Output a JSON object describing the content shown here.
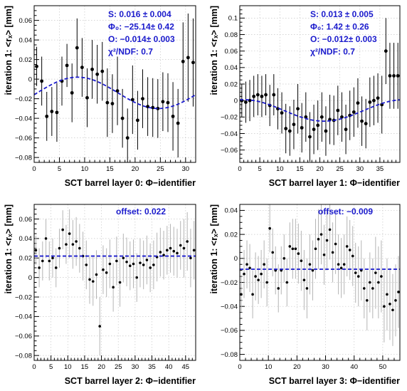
{
  "chart_data": [
    {
      "type": "scatter",
      "xlabel": "SCT barrel layer 0: Φ−identifier",
      "ylabel": "iteration 1: <rₓ> [mm]",
      "xlim": [
        0,
        32
      ],
      "ylim": [
        -0.085,
        0.075
      ],
      "xticks": [
        0,
        5,
        10,
        15,
        20,
        25,
        30
      ],
      "yticks": [
        -0.08,
        -0.06,
        -0.04,
        -0.02,
        0,
        0.02,
        0.04,
        0.06
      ],
      "ytick_labels": [
        "−0.08",
        "−0.06",
        "−0.04",
        "−0.02",
        "0",
        "0.02",
        "0.04",
        "0.06"
      ],
      "x_minor_step": 1,
      "grid": true,
      "error_color": "#000000",
      "point_radius": 2.4,
      "points": [
        {
          "x": 0,
          "y": 0.013,
          "err": 0.02
        },
        {
          "x": 1,
          "y": -0.002,
          "err": 0.025
        },
        {
          "x": 2,
          "y": -0.038,
          "err": 0.025
        },
        {
          "x": 3,
          "y": -0.033,
          "err": 0.025
        },
        {
          "x": 4,
          "y": -0.034,
          "err": 0.03
        },
        {
          "x": 5,
          "y": -0.002,
          "err": 0.025
        },
        {
          "x": 6,
          "y": 0.014,
          "err": 0.022
        },
        {
          "x": 7,
          "y": -0.014,
          "err": 0.03
        },
        {
          "x": 8,
          "y": 0.032,
          "err": 0.03
        },
        {
          "x": 9,
          "y": 0.012,
          "err": 0.03
        },
        {
          "x": 10,
          "y": -0.019,
          "err": 0.03
        },
        {
          "x": 11,
          "y": 0.01,
          "err": 0.03
        },
        {
          "x": 12,
          "y": 0.005,
          "err": 0.03
        },
        {
          "x": 13,
          "y": 0.008,
          "err": 0.03
        },
        {
          "x": 14,
          "y": -0.024,
          "err": 0.035
        },
        {
          "x": 15,
          "y": -0.025,
          "err": 0.03
        },
        {
          "x": 16,
          "y": -0.012,
          "err": 0.035
        },
        {
          "x": 17,
          "y": -0.04,
          "err": 0.03
        },
        {
          "x": 18,
          "y": -0.06,
          "err": 0.03
        },
        {
          "x": 19,
          "y": -0.021,
          "err": 0.035
        },
        {
          "x": 20,
          "y": -0.042,
          "err": 0.03
        },
        {
          "x": 21,
          "y": -0.02,
          "err": 0.03
        },
        {
          "x": 22,
          "y": -0.028,
          "err": 0.03
        },
        {
          "x": 23,
          "y": -0.029,
          "err": 0.03
        },
        {
          "x": 24,
          "y": -0.03,
          "err": 0.03
        },
        {
          "x": 25,
          "y": -0.023,
          "err": 0.03
        },
        {
          "x": 26,
          "y": -0.024,
          "err": 0.03
        },
        {
          "x": 27,
          "y": -0.038,
          "err": 0.035
        },
        {
          "x": 28,
          "y": -0.045,
          "err": 0.035
        },
        {
          "x": 29,
          "y": 0.018,
          "err": 0.04
        },
        {
          "x": 30,
          "y": 0.022,
          "err": 0.045
        },
        {
          "x": 31,
          "y": 0.017,
          "err": 0.045
        }
      ],
      "fit": {
        "kind": "cosine",
        "amplitude": 0.016,
        "period": 32,
        "phase_x": 8.6,
        "offset": -0.014,
        "color": "#1a1acc"
      },
      "fit_labels": [
        "S:  0.016 ± 0.004",
        "Φ₀: −25.14± 0.42",
        "O: −0.014± 0.003",
        "χ²/NDF: 0.7"
      ]
    },
    {
      "type": "scatter",
      "xlabel": "SCT barrel layer 1: Φ−identifier",
      "ylabel": "iteration 1: <rₓ> [mm]",
      "xlim": [
        0,
        40
      ],
      "ylim": [
        -0.075,
        0.115
      ],
      "xticks": [
        0,
        5,
        10,
        15,
        20,
        25,
        30,
        35
      ],
      "yticks": [
        -0.06,
        -0.04,
        -0.02,
        0,
        0.02,
        0.04,
        0.06,
        0.08,
        0.1
      ],
      "ytick_labels": [
        "−0.06",
        "−0.04",
        "−0.02",
        "0",
        "0.02",
        "0.04",
        "0.06",
        "0.08",
        "0.1"
      ],
      "x_minor_step": 1,
      "grid": true,
      "error_color": "#000000",
      "point_radius": 2.4,
      "points": [
        {
          "x": 0,
          "y": 0.0,
          "err": 0.02
        },
        {
          "x": 1,
          "y": -0.002,
          "err": 0.025
        },
        {
          "x": 2,
          "y": 0.0,
          "err": 0.025
        },
        {
          "x": 3,
          "y": 0.005,
          "err": 0.025
        },
        {
          "x": 4,
          "y": 0.007,
          "err": 0.025
        },
        {
          "x": 5,
          "y": 0.005,
          "err": 0.025
        },
        {
          "x": 6,
          "y": 0.007,
          "err": 0.025
        },
        {
          "x": 7,
          "y": -0.006,
          "err": 0.025
        },
        {
          "x": 8,
          "y": 0.007,
          "err": 0.025
        },
        {
          "x": 9,
          "y": -0.01,
          "err": 0.025
        },
        {
          "x": 10,
          "y": -0.015,
          "err": 0.025
        },
        {
          "x": 11,
          "y": -0.034,
          "err": 0.03
        },
        {
          "x": 12,
          "y": -0.037,
          "err": 0.03
        },
        {
          "x": 13,
          "y": -0.029,
          "err": 0.03
        },
        {
          "x": 14,
          "y": -0.01,
          "err": 0.03
        },
        {
          "x": 15,
          "y": -0.033,
          "err": 0.03
        },
        {
          "x": 16,
          "y": -0.02,
          "err": 0.03
        },
        {
          "x": 17,
          "y": -0.044,
          "err": 0.03
        },
        {
          "x": 18,
          "y": -0.035,
          "err": 0.03
        },
        {
          "x": 19,
          "y": -0.03,
          "err": 0.03
        },
        {
          "x": 20,
          "y": -0.02,
          "err": 0.03
        },
        {
          "x": 21,
          "y": -0.037,
          "err": 0.03
        },
        {
          "x": 22,
          "y": -0.023,
          "err": 0.03
        },
        {
          "x": 23,
          "y": -0.024,
          "err": 0.03
        },
        {
          "x": 24,
          "y": -0.012,
          "err": 0.03
        },
        {
          "x": 25,
          "y": -0.02,
          "err": 0.03
        },
        {
          "x": 26,
          "y": -0.035,
          "err": 0.03
        },
        {
          "x": 27,
          "y": -0.018,
          "err": 0.03
        },
        {
          "x": 28,
          "y": -0.014,
          "err": 0.03
        },
        {
          "x": 29,
          "y": -0.003,
          "err": 0.03
        },
        {
          "x": 30,
          "y": -0.025,
          "err": 0.03
        },
        {
          "x": 31,
          "y": -0.028,
          "err": 0.03
        },
        {
          "x": 32,
          "y": -0.002,
          "err": 0.03
        },
        {
          "x": 33,
          "y": 0.0,
          "err": 0.03
        },
        {
          "x": 34,
          "y": 0.003,
          "err": 0.03
        },
        {
          "x": 35,
          "y": -0.005,
          "err": 0.035
        },
        {
          "x": 36,
          "y": 0.06,
          "err": 0.04
        },
        {
          "x": 37,
          "y": 0.03,
          "err": 0.04
        },
        {
          "x": 38,
          "y": 0.03,
          "err": 0.04
        },
        {
          "x": 39,
          "y": 0.03,
          "err": 0.04
        }
      ],
      "fit": {
        "kind": "cosine",
        "amplitude": 0.013,
        "period": 40,
        "phase_x": 1.0,
        "offset": -0.012,
        "color": "#1a1acc"
      },
      "fit_labels": [
        "S:  0.013 ± 0.005",
        "Φ₀: 1.42 ± 0.26",
        "O: −0.012± 0.003",
        "χ²/NDF: 0.7"
      ]
    },
    {
      "type": "scatter",
      "xlabel": "SCT barrel layer 2: Φ−identifier",
      "ylabel": "iteration 1: <rₓ> [mm]",
      "xlim": [
        0,
        48
      ],
      "ylim": [
        -0.085,
        0.075
      ],
      "xticks": [
        0,
        5,
        10,
        15,
        20,
        25,
        30,
        35,
        40,
        45
      ],
      "yticks": [
        -0.08,
        -0.06,
        -0.04,
        -0.02,
        0,
        0.02,
        0.04,
        0.06
      ],
      "ytick_labels": [
        "−0.08",
        "−0.06",
        "−0.04",
        "−0.02",
        "0",
        "0.02",
        "0.04",
        "0.06"
      ],
      "x_minor_step": 1,
      "grid": true,
      "error_color": "#b4b4b4",
      "point_radius": 1.8,
      "points": [
        {
          "x": 0,
          "y": 0.028,
          "err": 0.015
        },
        {
          "x": 1,
          "y": 0.01,
          "err": 0.02
        },
        {
          "x": 2,
          "y": 0.017,
          "err": 0.02
        },
        {
          "x": 3,
          "y": 0.04,
          "err": 0.02
        },
        {
          "x": 4,
          "y": 0.017,
          "err": 0.02
        },
        {
          "x": 5,
          "y": 0.02,
          "err": 0.02
        },
        {
          "x": 6,
          "y": 0.01,
          "err": 0.02
        },
        {
          "x": 7,
          "y": 0.03,
          "err": 0.02
        },
        {
          "x": 8,
          "y": 0.049,
          "err": 0.02
        },
        {
          "x": 9,
          "y": 0.034,
          "err": 0.02
        },
        {
          "x": 10,
          "y": 0.045,
          "err": 0.025
        },
        {
          "x": 11,
          "y": 0.034,
          "err": 0.025
        },
        {
          "x": 12,
          "y": 0.037,
          "err": 0.025
        },
        {
          "x": 13,
          "y": 0.03,
          "err": 0.025
        },
        {
          "x": 14,
          "y": 0.022,
          "err": 0.025
        },
        {
          "x": 15,
          "y": 0.013,
          "err": 0.025
        },
        {
          "x": 16,
          "y": -0.002,
          "err": 0.025
        },
        {
          "x": 17,
          "y": -0.004,
          "err": 0.025
        },
        {
          "x": 18,
          "y": 0.003,
          "err": 0.025
        },
        {
          "x": 19,
          "y": -0.05,
          "err": 0.03
        },
        {
          "x": 20,
          "y": 0.008,
          "err": 0.025
        },
        {
          "x": 21,
          "y": 0.005,
          "err": 0.025
        },
        {
          "x": 22,
          "y": 0.014,
          "err": 0.025
        },
        {
          "x": 23,
          "y": -0.01,
          "err": 0.025
        },
        {
          "x": 24,
          "y": 0.017,
          "err": 0.025
        },
        {
          "x": 25,
          "y": -0.005,
          "err": 0.025
        },
        {
          "x": 26,
          "y": 0.02,
          "err": 0.025
        },
        {
          "x": 27,
          "y": 0.016,
          "err": 0.025
        },
        {
          "x": 28,
          "y": 0.012,
          "err": 0.025
        },
        {
          "x": 29,
          "y": 0.014,
          "err": 0.025
        },
        {
          "x": 30,
          "y": 0.0,
          "err": 0.025
        },
        {
          "x": 31,
          "y": 0.015,
          "err": 0.025
        },
        {
          "x": 32,
          "y": 0.013,
          "err": 0.025
        },
        {
          "x": 33,
          "y": 0.018,
          "err": 0.025
        },
        {
          "x": 34,
          "y": 0.01,
          "err": 0.025
        },
        {
          "x": 35,
          "y": 0.013,
          "err": 0.025
        },
        {
          "x": 36,
          "y": 0.021,
          "err": 0.025
        },
        {
          "x": 37,
          "y": 0.026,
          "err": 0.025
        },
        {
          "x": 38,
          "y": 0.023,
          "err": 0.025
        },
        {
          "x": 39,
          "y": 0.028,
          "err": 0.025
        },
        {
          "x": 40,
          "y": 0.03,
          "err": 0.025
        },
        {
          "x": 41,
          "y": 0.027,
          "err": 0.025
        },
        {
          "x": 42,
          "y": 0.025,
          "err": 0.025
        },
        {
          "x": 43,
          "y": 0.033,
          "err": 0.025
        },
        {
          "x": 44,
          "y": 0.03,
          "err": 0.03
        },
        {
          "x": 45,
          "y": 0.037,
          "err": 0.03
        },
        {
          "x": 46,
          "y": 0.02,
          "err": 0.03
        },
        {
          "x": 47,
          "y": 0.028,
          "err": 0.03
        }
      ],
      "fit": {
        "kind": "constant",
        "offset": 0.022,
        "color": "#1a1acc"
      },
      "fit_labels": [
        "offset:  0.022"
      ]
    },
    {
      "type": "scatter",
      "xlabel": "SCT barrel layer 3: Φ−identifier",
      "ylabel": "iteration 1: <rₓ> [mm]",
      "xlim": [
        0,
        56
      ],
      "ylim": [
        -0.085,
        0.045
      ],
      "xticks": [
        0,
        10,
        20,
        30,
        40,
        50
      ],
      "yticks": [
        -0.08,
        -0.06,
        -0.04,
        -0.02,
        0,
        0.02,
        0.04
      ],
      "ytick_labels": [
        "−0.08",
        "−0.06",
        "−0.04",
        "−0.02",
        "0",
        "0.02",
        "0.04"
      ],
      "x_minor_step": 2,
      "grid": true,
      "error_color": "#b4b4b4",
      "point_radius": 1.8,
      "points": [
        {
          "x": 0,
          "y": -0.03,
          "err": 0.015
        },
        {
          "x": 1,
          "y": -0.013,
          "err": 0.02
        },
        {
          "x": 2,
          "y": -0.005,
          "err": 0.02
        },
        {
          "x": 3,
          "y": -0.008,
          "err": 0.02
        },
        {
          "x": 4,
          "y": -0.03,
          "err": 0.02
        },
        {
          "x": 5,
          "y": -0.015,
          "err": 0.02
        },
        {
          "x": 6,
          "y": -0.018,
          "err": 0.02
        },
        {
          "x": 7,
          "y": -0.013,
          "err": 0.02
        },
        {
          "x": 8,
          "y": -0.005,
          "err": 0.02
        },
        {
          "x": 9,
          "y": -0.02,
          "err": 0.02
        },
        {
          "x": 10,
          "y": 0.025,
          "err": 0.02
        },
        {
          "x": 11,
          "y": 0.005,
          "err": 0.02
        },
        {
          "x": 12,
          "y": -0.01,
          "err": 0.02
        },
        {
          "x": 13,
          "y": -0.025,
          "err": 0.02
        },
        {
          "x": 14,
          "y": -0.01,
          "err": 0.02
        },
        {
          "x": 15,
          "y": 0.0,
          "err": 0.02
        },
        {
          "x": 16,
          "y": -0.02,
          "err": 0.02
        },
        {
          "x": 17,
          "y": 0.01,
          "err": 0.02
        },
        {
          "x": 18,
          "y": 0.008,
          "err": 0.025
        },
        {
          "x": 19,
          "y": 0.008,
          "err": 0.025
        },
        {
          "x": 20,
          "y": 0.004,
          "err": 0.025
        },
        {
          "x": 21,
          "y": -0.002,
          "err": 0.025
        },
        {
          "x": 22,
          "y": -0.018,
          "err": 0.025
        },
        {
          "x": 23,
          "y": -0.025,
          "err": 0.025
        },
        {
          "x": 24,
          "y": -0.005,
          "err": 0.025
        },
        {
          "x": 25,
          "y": -0.01,
          "err": 0.025
        },
        {
          "x": 26,
          "y": 0.008,
          "err": 0.025
        },
        {
          "x": 27,
          "y": 0.016,
          "err": 0.025
        },
        {
          "x": 28,
          "y": 0.02,
          "err": 0.025
        },
        {
          "x": 29,
          "y": 0.003,
          "err": 0.025
        },
        {
          "x": 30,
          "y": 0.015,
          "err": 0.025
        },
        {
          "x": 31,
          "y": 0.024,
          "err": 0.025
        },
        {
          "x": 32,
          "y": 0.005,
          "err": 0.025
        },
        {
          "x": 33,
          "y": 0.012,
          "err": 0.025
        },
        {
          "x": 34,
          "y": -0.005,
          "err": 0.025
        },
        {
          "x": 35,
          "y": -0.008,
          "err": 0.025
        },
        {
          "x": 36,
          "y": -0.005,
          "err": 0.025
        },
        {
          "x": 37,
          "y": 0.01,
          "err": 0.025
        },
        {
          "x": 38,
          "y": 0.007,
          "err": 0.025
        },
        {
          "x": 39,
          "y": 0.002,
          "err": 0.025
        },
        {
          "x": 40,
          "y": -0.012,
          "err": 0.025
        },
        {
          "x": 41,
          "y": -0.015,
          "err": 0.025
        },
        {
          "x": 42,
          "y": -0.01,
          "err": 0.025
        },
        {
          "x": 43,
          "y": -0.025,
          "err": 0.025
        },
        {
          "x": 44,
          "y": -0.035,
          "err": 0.025
        },
        {
          "x": 45,
          "y": -0.02,
          "err": 0.025
        },
        {
          "x": 46,
          "y": -0.025,
          "err": 0.025
        },
        {
          "x": 47,
          "y": -0.012,
          "err": 0.03
        },
        {
          "x": 48,
          "y": -0.02,
          "err": 0.03
        },
        {
          "x": 49,
          "y": -0.015,
          "err": 0.03
        },
        {
          "x": 50,
          "y": -0.04,
          "err": 0.03
        },
        {
          "x": 51,
          "y": -0.03,
          "err": 0.03
        },
        {
          "x": 52,
          "y": -0.038,
          "err": 0.03
        },
        {
          "x": 53,
          "y": -0.043,
          "err": 0.03
        },
        {
          "x": 54,
          "y": -0.035,
          "err": 0.03
        },
        {
          "x": 55,
          "y": -0.028,
          "err": 0.03
        }
      ],
      "fit": {
        "kind": "constant",
        "offset": -0.009,
        "color": "#1a1acc"
      },
      "fit_labels": [
        "offset:  −0.009"
      ]
    }
  ]
}
